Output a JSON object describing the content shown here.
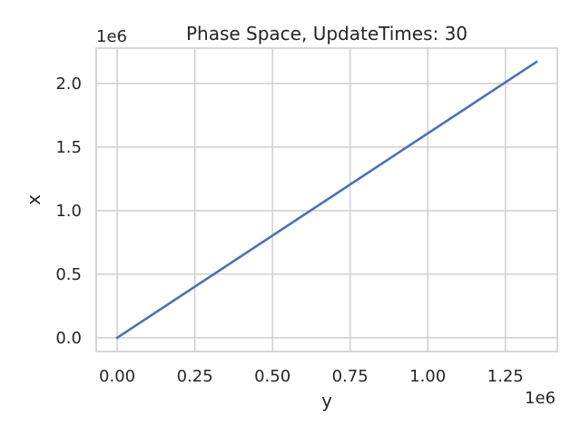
{
  "chart_data": {
    "type": "line",
    "title": "Phase Space, UpdateTimes: 30",
    "xlabel": "y",
    "ylabel": "x",
    "x_offset_label": "1e6",
    "y_offset_label": "1e6",
    "xlim": [
      -0.0675,
      1.4175
    ],
    "ylim": [
      -0.1085,
      2.2785
    ],
    "xticks": [
      0.0,
      0.25,
      0.5,
      0.75,
      1.0,
      1.25
    ],
    "xtick_labels": [
      "0.00",
      "0.25",
      "0.50",
      "0.75",
      "1.00",
      "1.25"
    ],
    "yticks": [
      0.0,
      0.5,
      1.0,
      1.5,
      2.0
    ],
    "ytick_labels": [
      "0.0",
      "0.5",
      "1.0",
      "1.5",
      "2.0"
    ],
    "grid": true,
    "series": [
      {
        "color": "#4c72b0",
        "x": [
          0.0,
          1.35
        ],
        "y": [
          0.0,
          2.17
        ]
      }
    ]
  }
}
